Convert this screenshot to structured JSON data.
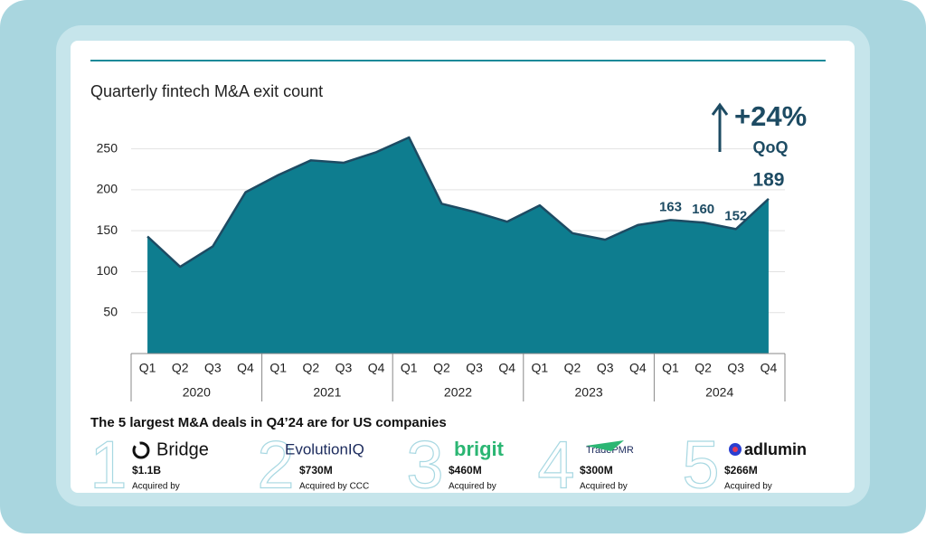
{
  "chart_data": {
    "type": "area",
    "title": "Quarterly fintech M&A exit count",
    "categories": [
      "Q1",
      "Q2",
      "Q3",
      "Q4",
      "Q1",
      "Q2",
      "Q3",
      "Q4",
      "Q1",
      "Q2",
      "Q3",
      "Q4",
      "Q1",
      "Q2",
      "Q3",
      "Q4",
      "Q1",
      "Q2",
      "Q3",
      "Q4"
    ],
    "x_groups": [
      "2020",
      "2021",
      "2022",
      "2023",
      "2024"
    ],
    "series": [
      {
        "name": "Exit count",
        "color": "#0e7d8f",
        "line_color": "#1d4b63",
        "values": [
          143,
          106,
          131,
          197,
          218,
          236,
          233,
          246,
          264,
          183,
          173,
          161,
          181,
          147,
          139,
          157,
          163,
          160,
          152,
          189
        ]
      }
    ],
    "ylim": [
      0,
      275
    ],
    "yticks": [
      50,
      100,
      150,
      200,
      250
    ],
    "grid": true,
    "annotation": {
      "change": "+24%",
      "period": "QoQ"
    }
  },
  "deals": {
    "title": "The 5 largest M&A deals in Q4’24 are for US companies",
    "items": [
      {
        "rank": "1",
        "company": "Bridge",
        "amount": "$1.1B",
        "note": "Acquired by"
      },
      {
        "rank": "2",
        "company": "EvolutionIQ",
        "amount": "$730M",
        "note": "Acquired by CCC"
      },
      {
        "rank": "3",
        "company": "brigit",
        "amount": "$460M",
        "note": "Acquired by"
      },
      {
        "rank": "4",
        "company": "TradePMR",
        "amount": "$300M",
        "note": "Acquired by"
      },
      {
        "rank": "5",
        "company": "adlumin",
        "amount": "$266M",
        "note": "Acquired by"
      }
    ]
  }
}
